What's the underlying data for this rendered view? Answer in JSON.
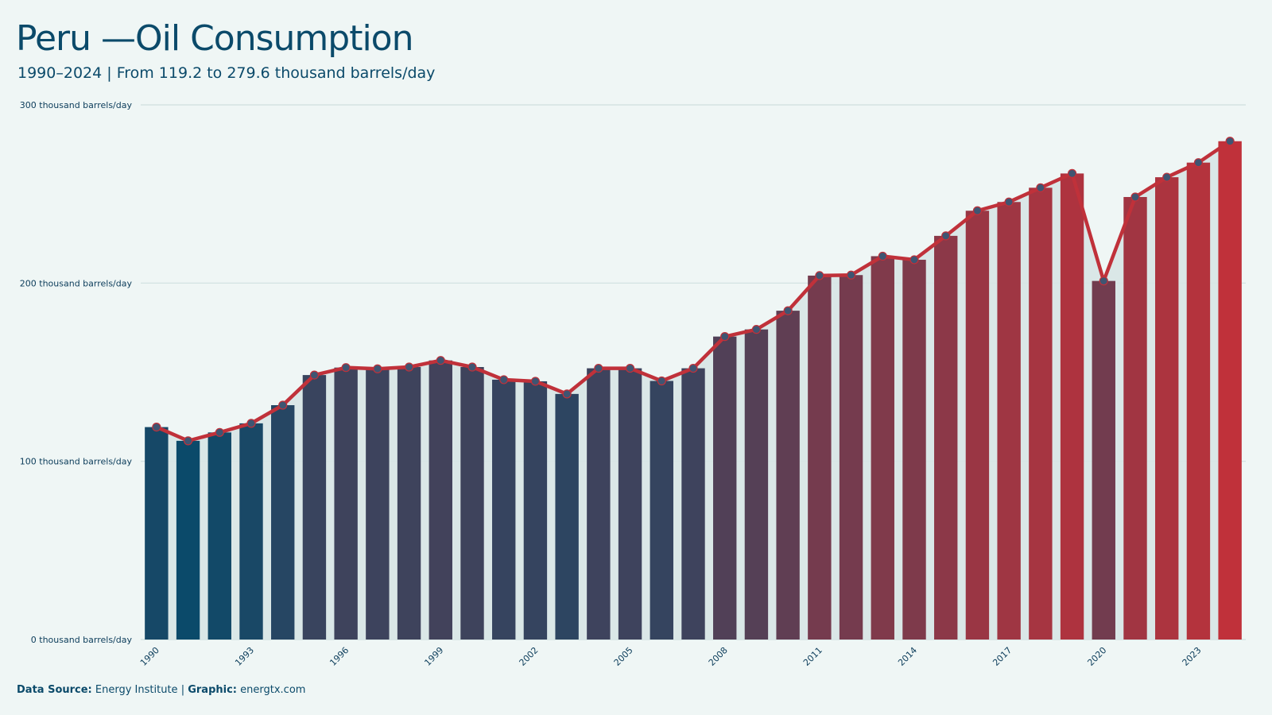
{
  "title": "Peru —Oil Consumption",
  "subtitle": "1990–2024 | From 119.2  to 279.6 thousand barrels/day",
  "footer": {
    "source_label": "Data  Source:",
    "source_value": "Energy Institute",
    "separator": "|",
    "graphic_label": "Graphic:",
    "graphic_value": "energtx.com"
  },
  "colors": {
    "background": "#eff6f5",
    "bar_start": "#0b4a6a",
    "bar_end": "#c0313a",
    "line": "#c0313a",
    "marker_fill": "#3f5572",
    "marker_stroke": "#c0313a",
    "grid": "#cfe0df",
    "band": "#d7e5e5"
  },
  "chart_data": {
    "type": "bar",
    "title": "Peru —Oil Consumption",
    "unit": "thousand barrels/day",
    "x": [
      1990,
      1991,
      1992,
      1993,
      1994,
      1995,
      1996,
      1997,
      1998,
      1999,
      2000,
      2001,
      2002,
      2003,
      2004,
      2005,
      2006,
      2007,
      2008,
      2009,
      2010,
      2011,
      2012,
      2013,
      2014,
      2015,
      2016,
      2017,
      2018,
      2019,
      2020,
      2021,
      2022,
      2023,
      2024
    ],
    "values": [
      119.2,
      111.5,
      116.2,
      121.3,
      131.5,
      148.4,
      152.6,
      151.9,
      152.9,
      156.6,
      152.9,
      145.8,
      144.9,
      137.8,
      152.2,
      152.2,
      145.1,
      152.2,
      170.0,
      174.0,
      184.5,
      204.2,
      204.5,
      215.1,
      213.1,
      226.5,
      240.6,
      245.5,
      253.5,
      261.5,
      201.2,
      248.3,
      259.4,
      267.6,
      279.6
    ],
    "overlay_line": true,
    "ylim": [
      0,
      300
    ],
    "yticks": [
      0,
      100,
      200,
      300
    ],
    "ytick_labels": [
      "0 thousand barrels/day",
      "100 thousand barrels/day",
      "200 thousand barrels/day",
      "300 thousand barrels/day"
    ],
    "xtick_labels": [
      "1990",
      "1993",
      "1996",
      "1999",
      "2002",
      "2005",
      "2008",
      "2011",
      "2014",
      "2017",
      "2020",
      "2023"
    ],
    "grid": true
  }
}
